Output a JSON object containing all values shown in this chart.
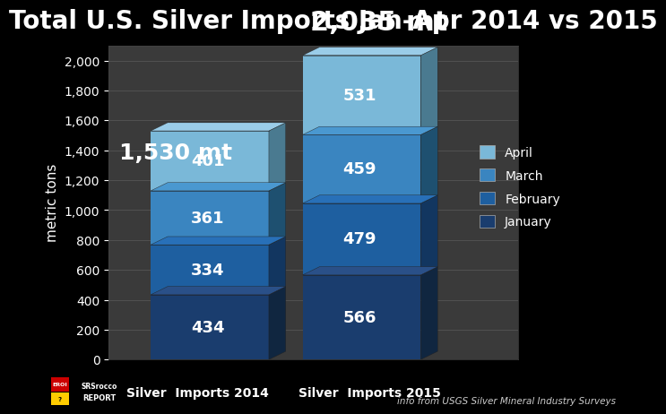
{
  "title": "Total U.S. Silver Imports Jan-Apr 2014 vs 2015",
  "ylabel": "metric tons",
  "background_color": "#000000",
  "plot_bg_color": "#3a3a3a",
  "grid_color": "#555555",
  "categories": [
    "Silver  Imports 2014",
    "Silver  Imports 2015"
  ],
  "months": [
    "January",
    "February",
    "March",
    "April"
  ],
  "values_2014": [
    434,
    334,
    361,
    401
  ],
  "values_2015": [
    566,
    479,
    459,
    531
  ],
  "total_2014": "1,530 mt",
  "total_2015": "2,035 mt",
  "colors_front": [
    "#1a3d6e",
    "#1e5fa0",
    "#3a85c0",
    "#7ab8d8"
  ],
  "colors_side": [
    "#102640",
    "#123660",
    "#1e5070",
    "#4a7a90"
  ],
  "colors_top": [
    "#2a5088",
    "#2870b8",
    "#4a98d0",
    "#9acce8"
  ],
  "ylim": [
    0,
    2100
  ],
  "yticks": [
    0,
    200,
    400,
    600,
    800,
    1000,
    1200,
    1400,
    1600,
    1800,
    2000
  ],
  "source_text": "info from USGS Silver Mineral Industry Surveys",
  "title_fontsize": 20,
  "label_fontsize": 11,
  "tick_fontsize": 10,
  "bar_label_fontsize": 13,
  "total_2014_fontsize": 18,
  "total_2015_fontsize": 22
}
